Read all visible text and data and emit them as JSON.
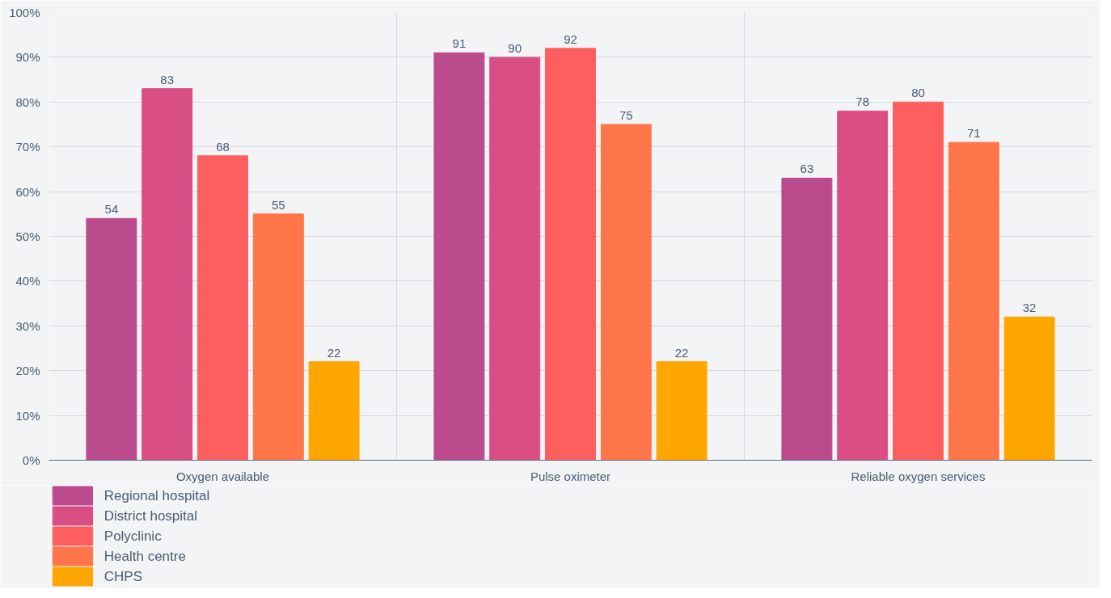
{
  "chart_data": {
    "type": "bar",
    "categories": [
      "Oxygen available",
      "Pulse oximeter",
      "Reliable oxygen services"
    ],
    "series": [
      {
        "name": "Regional hospital",
        "color": "#bc4b8e",
        "values": [
          54,
          91,
          63
        ]
      },
      {
        "name": "District hospital",
        "color": "#d94f84",
        "values": [
          83,
          90,
          78
        ]
      },
      {
        "name": "Polyclinic",
        "color": "#fd5f5f",
        "values": [
          68,
          92,
          80
        ]
      },
      {
        "name": "Health centre",
        "color": "#fd7549",
        "values": [
          55,
          75,
          71
        ]
      },
      {
        "name": "CHPS",
        "color": "#ffa600",
        "values": [
          22,
          22,
          32
        ]
      }
    ],
    "ylim": [
      0,
      100
    ],
    "yticks": [
      {
        "value": 0,
        "label": "0%"
      },
      {
        "value": 10,
        "label": "10%"
      },
      {
        "value": 20,
        "label": "20%"
      },
      {
        "value": 30,
        "label": "30%"
      },
      {
        "value": 40,
        "label": "40%"
      },
      {
        "value": 50,
        "label": "50%"
      },
      {
        "value": 60,
        "label": "60%"
      },
      {
        "value": 70,
        "label": "70%"
      },
      {
        "value": 80,
        "label": "80%"
      },
      {
        "value": 90,
        "label": "90%"
      },
      {
        "value": 100,
        "label": "100%"
      }
    ],
    "grid": true,
    "legend": "bottom left",
    "data_labels": true
  }
}
